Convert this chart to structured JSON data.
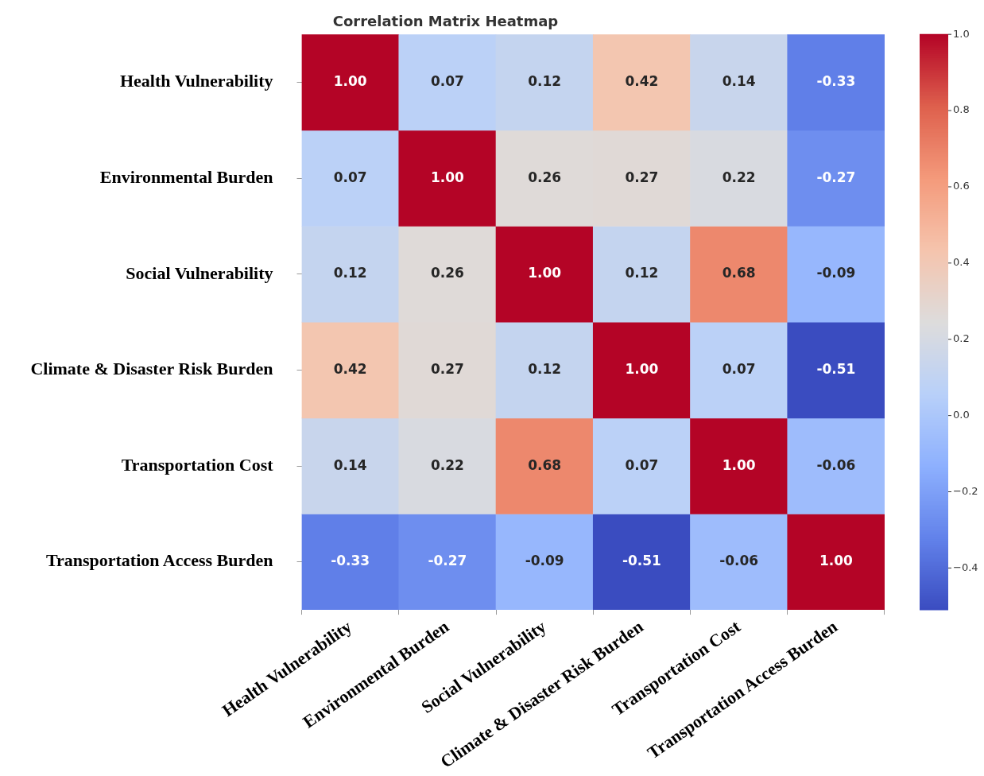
{
  "chart_data": {
    "type": "heatmap",
    "title": "Correlation Matrix Heatmap",
    "categories": [
      "Health Vulnerability",
      "Environmental Burden",
      "Social Vulnerability",
      "Climate & Disaster Risk Burden",
      "Transportation Cost",
      "Transportation Access Burden"
    ],
    "y_categories": [
      "Health Vulnerability",
      "Environmental Burden",
      "Social Vulnerability",
      "Climate & Disaster Risk Burden",
      "Transportation Cost",
      "Transportation Access Burden"
    ],
    "cells": [
      [
        1.0,
        0.07,
        0.12,
        0.42,
        0.14,
        -0.33
      ],
      [
        0.07,
        1.0,
        0.26,
        0.27,
        0.22,
        -0.27
      ],
      [
        0.12,
        0.26,
        1.0,
        0.12,
        0.68,
        -0.09
      ],
      [
        0.42,
        0.27,
        0.12,
        1.0,
        0.07,
        -0.51
      ],
      [
        0.14,
        0.22,
        0.68,
        0.07,
        1.0,
        -0.06
      ],
      [
        -0.33,
        -0.27,
        -0.09,
        -0.51,
        -0.06,
        1.0
      ]
    ],
    "clim": [
      -0.51,
      1.0
    ],
    "cticks": [
      {
        "value": 1.0,
        "label": "1.0"
      },
      {
        "value": 0.8,
        "label": "0.8"
      },
      {
        "value": 0.6,
        "label": "0.6"
      },
      {
        "value": 0.4,
        "label": "0.4"
      },
      {
        "value": 0.2,
        "label": "0.2"
      },
      {
        "value": 0.0,
        "label": "0.0"
      },
      {
        "value": -0.2,
        "label": "−0.2"
      },
      {
        "value": -0.4,
        "label": "−0.4"
      }
    ],
    "cell_labels": [
      [
        "1.00",
        "0.07",
        "0.12",
        "0.42",
        "0.14",
        "-0.33"
      ],
      [
        "0.07",
        "1.00",
        "0.26",
        "0.27",
        "0.22",
        "-0.27"
      ],
      [
        "0.12",
        "0.26",
        "1.00",
        "0.12",
        "0.68",
        "-0.09"
      ],
      [
        "0.42",
        "0.27",
        "0.12",
        "1.00",
        "0.07",
        "-0.51"
      ],
      [
        "0.14",
        "0.22",
        "0.68",
        "0.07",
        "1.00",
        "-0.06"
      ],
      [
        "-0.33",
        "-0.27",
        "-0.09",
        "-0.51",
        "-0.06",
        "1.00"
      ]
    ]
  }
}
